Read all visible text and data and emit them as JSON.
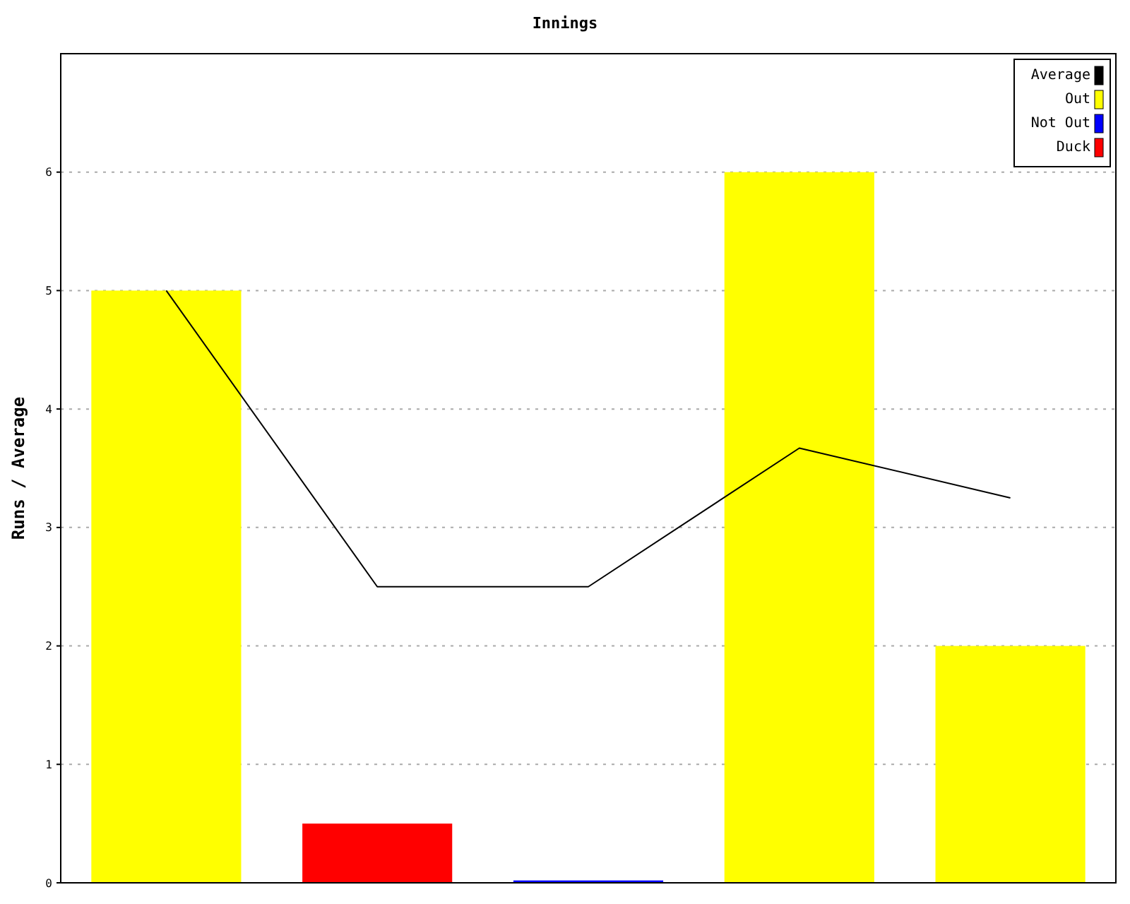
{
  "chart_data": {
    "type": "bar",
    "title": "Innings",
    "ylabel": "Runs / Average",
    "categories": [
      null,
      null,
      null,
      null,
      null
    ],
    "stacked": true,
    "series": [
      {
        "name": "Average",
        "type": "line",
        "color": "#000000",
        "values": [
          5,
          2.5,
          2.5,
          3.67,
          3.25
        ]
      },
      {
        "name": "Out",
        "color": "#ffff00",
        "values": [
          5,
          null,
          null,
          6,
          2
        ]
      },
      {
        "name": "Not Out",
        "color": "#0000ff",
        "values": [
          null,
          null,
          0.02,
          null,
          null
        ]
      },
      {
        "name": "Duck",
        "color": "#ff0000",
        "values": [
          null,
          0.5,
          null,
          null,
          null
        ]
      }
    ],
    "ylim": [
      0,
      7
    ],
    "yticks": [
      0,
      1,
      2,
      3,
      4,
      5,
      6
    ],
    "grid": "y",
    "legend": "top right",
    "marker": "none",
    "line_style": "solid"
  }
}
